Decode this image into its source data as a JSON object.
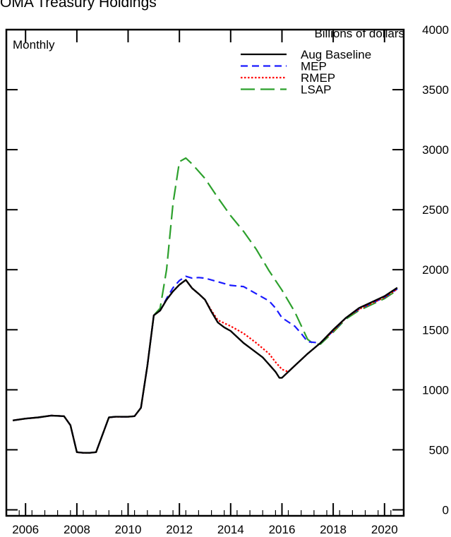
{
  "chart_data": {
    "type": "line",
    "title": "SOMA Treasury Holdings",
    "ylabel": "Billions of dollars",
    "frequency_note": "Monthly",
    "xlim": [
      2005.25,
      2020.75
    ],
    "ylim": [
      -50,
      4000
    ],
    "x_ticks": [
      2006,
      2008,
      2010,
      2012,
      2014,
      2016,
      2018,
      2020
    ],
    "y_ticks": [
      0,
      500,
      1000,
      1500,
      2000,
      2500,
      3000,
      3500,
      4000
    ],
    "legend_position": "top-right",
    "grid": false,
    "series": [
      {
        "name": "Aug Baseline",
        "color": "#000000",
        "dash": "solid",
        "points": [
          [
            2005.5,
            745
          ],
          [
            2006.0,
            760
          ],
          [
            2006.5,
            770
          ],
          [
            2007.0,
            785
          ],
          [
            2007.5,
            780
          ],
          [
            2007.75,
            705
          ],
          [
            2008.0,
            480
          ],
          [
            2008.25,
            475
          ],
          [
            2008.5,
            475
          ],
          [
            2008.75,
            480
          ],
          [
            2009.25,
            770
          ],
          [
            2009.5,
            775
          ],
          [
            2009.75,
            775
          ],
          [
            2010.0,
            775
          ],
          [
            2010.25,
            780
          ],
          [
            2010.5,
            850
          ],
          [
            2010.75,
            1200
          ],
          [
            2011.0,
            1620
          ],
          [
            2011.25,
            1660
          ],
          [
            2011.5,
            1750
          ],
          [
            2011.75,
            1820
          ],
          [
            2012.0,
            1875
          ],
          [
            2012.25,
            1915
          ],
          [
            2012.5,
            1845
          ],
          [
            2012.75,
            1800
          ],
          [
            2013.0,
            1750
          ],
          [
            2013.25,
            1650
          ],
          [
            2013.5,
            1560
          ],
          [
            2013.75,
            1520
          ],
          [
            2014.0,
            1490
          ],
          [
            2014.25,
            1440
          ],
          [
            2014.5,
            1390
          ],
          [
            2014.75,
            1350
          ],
          [
            2015.0,
            1310
          ],
          [
            2015.25,
            1270
          ],
          [
            2015.5,
            1210
          ],
          [
            2015.75,
            1150
          ],
          [
            2015.9,
            1100
          ],
          [
            2016.0,
            1100
          ],
          [
            2016.5,
            1200
          ],
          [
            2017.0,
            1300
          ],
          [
            2017.5,
            1390
          ],
          [
            2018.0,
            1500
          ],
          [
            2018.5,
            1600
          ],
          [
            2019.0,
            1680
          ],
          [
            2019.5,
            1730
          ],
          [
            2020.0,
            1780
          ],
          [
            2020.5,
            1850
          ]
        ]
      },
      {
        "name": "MEP",
        "color": "#1a1aff",
        "dash": "dashed",
        "points": [
          [
            2005.5,
            745
          ],
          [
            2006.0,
            760
          ],
          [
            2006.5,
            770
          ],
          [
            2007.0,
            785
          ],
          [
            2007.5,
            780
          ],
          [
            2007.75,
            705
          ],
          [
            2008.0,
            480
          ],
          [
            2008.25,
            475
          ],
          [
            2008.5,
            475
          ],
          [
            2008.75,
            480
          ],
          [
            2009.25,
            770
          ],
          [
            2009.5,
            775
          ],
          [
            2009.75,
            775
          ],
          [
            2010.0,
            775
          ],
          [
            2010.25,
            780
          ],
          [
            2010.5,
            850
          ],
          [
            2010.75,
            1200
          ],
          [
            2011.0,
            1620
          ],
          [
            2011.25,
            1660
          ],
          [
            2011.5,
            1760
          ],
          [
            2011.75,
            1850
          ],
          [
            2012.0,
            1910
          ],
          [
            2012.25,
            1945
          ],
          [
            2012.5,
            1930
          ],
          [
            2012.75,
            1935
          ],
          [
            2013.0,
            1930
          ],
          [
            2013.5,
            1900
          ],
          [
            2014.0,
            1870
          ],
          [
            2014.5,
            1860
          ],
          [
            2015.0,
            1800
          ],
          [
            2015.5,
            1740
          ],
          [
            2015.75,
            1680
          ],
          [
            2016.0,
            1600
          ],
          [
            2016.5,
            1530
          ],
          [
            2016.75,
            1470
          ],
          [
            2017.0,
            1400
          ],
          [
            2017.5,
            1390
          ],
          [
            2018.0,
            1490
          ],
          [
            2018.5,
            1600
          ],
          [
            2019.0,
            1670
          ],
          [
            2019.5,
            1720
          ],
          [
            2020.0,
            1770
          ],
          [
            2020.5,
            1840
          ]
        ]
      },
      {
        "name": "RMEP",
        "color": "#ff0000",
        "dash": "dotted",
        "points": [
          [
            2005.5,
            745
          ],
          [
            2006.0,
            760
          ],
          [
            2006.5,
            770
          ],
          [
            2007.0,
            785
          ],
          [
            2007.5,
            780
          ],
          [
            2007.75,
            705
          ],
          [
            2008.0,
            480
          ],
          [
            2008.25,
            475
          ],
          [
            2008.5,
            475
          ],
          [
            2008.75,
            480
          ],
          [
            2009.25,
            770
          ],
          [
            2009.5,
            775
          ],
          [
            2009.75,
            775
          ],
          [
            2010.0,
            775
          ],
          [
            2010.25,
            780
          ],
          [
            2010.5,
            850
          ],
          [
            2010.75,
            1200
          ],
          [
            2011.0,
            1620
          ],
          [
            2011.25,
            1660
          ],
          [
            2011.5,
            1750
          ],
          [
            2011.75,
            1820
          ],
          [
            2012.0,
            1875
          ],
          [
            2012.25,
            1915
          ],
          [
            2012.5,
            1845
          ],
          [
            2012.75,
            1800
          ],
          [
            2013.0,
            1750
          ],
          [
            2013.25,
            1660
          ],
          [
            2013.5,
            1580
          ],
          [
            2014.0,
            1530
          ],
          [
            2014.5,
            1470
          ],
          [
            2015.0,
            1390
          ],
          [
            2015.5,
            1300
          ],
          [
            2015.75,
            1230
          ],
          [
            2016.0,
            1170
          ],
          [
            2016.25,
            1150
          ],
          [
            2016.5,
            1200
          ],
          [
            2017.0,
            1300
          ],
          [
            2017.5,
            1390
          ],
          [
            2018.0,
            1490
          ],
          [
            2018.5,
            1600
          ],
          [
            2019.0,
            1670
          ],
          [
            2019.5,
            1720
          ],
          [
            2020.0,
            1770
          ],
          [
            2020.5,
            1840
          ]
        ]
      },
      {
        "name": "LSAP",
        "color": "#2ca02c",
        "dash": "longdash",
        "points": [
          [
            2005.5,
            745
          ],
          [
            2006.0,
            760
          ],
          [
            2006.5,
            770
          ],
          [
            2007.0,
            785
          ],
          [
            2007.5,
            780
          ],
          [
            2007.75,
            705
          ],
          [
            2008.0,
            480
          ],
          [
            2008.25,
            475
          ],
          [
            2008.5,
            475
          ],
          [
            2008.75,
            480
          ],
          [
            2009.25,
            770
          ],
          [
            2009.5,
            775
          ],
          [
            2009.75,
            775
          ],
          [
            2010.0,
            775
          ],
          [
            2010.25,
            780
          ],
          [
            2010.5,
            850
          ],
          [
            2010.75,
            1200
          ],
          [
            2011.0,
            1620
          ],
          [
            2011.25,
            1680
          ],
          [
            2011.5,
            2000
          ],
          [
            2011.75,
            2550
          ],
          [
            2012.0,
            2900
          ],
          [
            2012.25,
            2930
          ],
          [
            2012.5,
            2880
          ],
          [
            2013.0,
            2760
          ],
          [
            2013.5,
            2600
          ],
          [
            2014.0,
            2450
          ],
          [
            2014.5,
            2320
          ],
          [
            2015.0,
            2170
          ],
          [
            2015.5,
            1990
          ],
          [
            2016.0,
            1830
          ],
          [
            2016.5,
            1650
          ],
          [
            2017.0,
            1420
          ],
          [
            2017.25,
            1380
          ],
          [
            2017.5,
            1380
          ],
          [
            2018.0,
            1480
          ],
          [
            2018.5,
            1590
          ],
          [
            2019.0,
            1660
          ],
          [
            2019.5,
            1710
          ],
          [
            2020.0,
            1760
          ],
          [
            2020.5,
            1830
          ]
        ]
      }
    ]
  }
}
